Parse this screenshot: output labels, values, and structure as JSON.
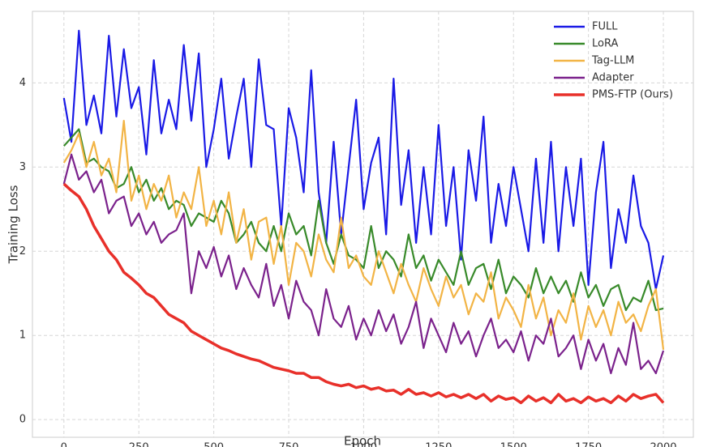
{
  "chart_data": {
    "type": "line",
    "x_label": "Epoch",
    "y_label": "Training Loss",
    "x": [
      0,
      25,
      50,
      75,
      100,
      125,
      150,
      175,
      200,
      225,
      250,
      275,
      300,
      325,
      350,
      375,
      400,
      425,
      450,
      475,
      500,
      525,
      550,
      575,
      600,
      625,
      650,
      675,
      700,
      725,
      750,
      775,
      800,
      825,
      850,
      875,
      900,
      925,
      950,
      975,
      1000,
      1025,
      1050,
      1075,
      1100,
      1125,
      1150,
      1175,
      1200,
      1225,
      1250,
      1275,
      1300,
      1325,
      1350,
      1375,
      1400,
      1425,
      1450,
      1475,
      1500,
      1525,
      1550,
      1575,
      1600,
      1625,
      1650,
      1675,
      1700,
      1725,
      1750,
      1775,
      1800,
      1825,
      1850,
      1875,
      1900,
      1925,
      1950,
      1975,
      2000
    ],
    "series": [
      {
        "name": "FULL",
        "color": "#1a1ae6",
        "values": [
          3.82,
          3.3,
          4.62,
          3.5,
          3.85,
          3.4,
          4.56,
          3.6,
          4.4,
          3.7,
          3.95,
          3.15,
          4.27,
          3.4,
          3.8,
          3.45,
          4.45,
          3.55,
          4.35,
          3.0,
          3.45,
          4.05,
          3.1,
          3.6,
          4.05,
          3.0,
          4.28,
          3.5,
          3.45,
          2.3,
          3.7,
          3.35,
          2.7,
          4.15,
          2.7,
          2.1,
          3.3,
          2.2,
          3.0,
          3.8,
          2.5,
          3.05,
          3.35,
          2.2,
          4.05,
          2.55,
          3.2,
          2.1,
          3.0,
          2.2,
          3.5,
          2.3,
          3.0,
          1.9,
          3.2,
          2.6,
          3.6,
          2.1,
          2.8,
          2.3,
          3.0,
          2.5,
          2.0,
          3.1,
          2.1,
          3.3,
          2.0,
          3.0,
          2.3,
          3.1,
          1.6,
          2.7,
          3.3,
          1.8,
          2.5,
          2.1,
          2.9,
          2.3,
          2.1,
          1.55,
          1.95
        ]
      },
      {
        "name": "LoRA",
        "color": "#388a2a",
        "values": [
          3.25,
          3.35,
          3.45,
          3.05,
          3.1,
          3.0,
          2.95,
          2.75,
          2.8,
          3.0,
          2.7,
          2.85,
          2.6,
          2.75,
          2.5,
          2.6,
          2.55,
          2.3,
          2.45,
          2.4,
          2.35,
          2.6,
          2.45,
          2.1,
          2.2,
          2.35,
          2.1,
          2.0,
          2.3,
          2.0,
          2.45,
          2.2,
          2.3,
          1.95,
          2.6,
          2.1,
          1.85,
          2.2,
          1.95,
          1.9,
          1.8,
          2.3,
          1.8,
          2.0,
          1.9,
          1.7,
          2.2,
          1.8,
          1.95,
          1.65,
          1.9,
          1.75,
          1.6,
          2.0,
          1.6,
          1.8,
          1.85,
          1.55,
          1.9,
          1.5,
          1.7,
          1.6,
          1.45,
          1.8,
          1.5,
          1.7,
          1.5,
          1.65,
          1.4,
          1.75,
          1.45,
          1.6,
          1.35,
          1.55,
          1.6,
          1.3,
          1.45,
          1.4,
          1.65,
          1.3,
          1.32
        ]
      },
      {
        "name": "Tag-LLM",
        "color": "#f2b445",
        "values": [
          3.05,
          3.2,
          3.4,
          3.0,
          3.3,
          2.9,
          3.1,
          2.7,
          3.55,
          2.6,
          2.9,
          2.5,
          2.8,
          2.6,
          2.9,
          2.4,
          2.7,
          2.5,
          3.0,
          2.3,
          2.6,
          2.2,
          2.7,
          2.1,
          2.5,
          1.9,
          2.35,
          2.4,
          1.85,
          2.3,
          1.6,
          2.1,
          2.0,
          1.7,
          2.2,
          1.9,
          1.75,
          2.4,
          1.8,
          1.95,
          1.7,
          1.6,
          2.0,
          1.75,
          1.5,
          1.85,
          1.6,
          1.4,
          1.8,
          1.55,
          1.35,
          1.7,
          1.45,
          1.6,
          1.25,
          1.5,
          1.4,
          1.75,
          1.2,
          1.45,
          1.3,
          1.1,
          1.6,
          1.2,
          1.45,
          1.0,
          1.3,
          1.15,
          1.5,
          0.95,
          1.35,
          1.1,
          1.3,
          1.0,
          1.4,
          1.15,
          1.25,
          1.05,
          1.35,
          1.55,
          0.83
        ]
      },
      {
        "name": "Adapter",
        "color": "#7b228c",
        "values": [
          2.8,
          3.15,
          2.85,
          2.95,
          2.7,
          2.85,
          2.45,
          2.6,
          2.65,
          2.3,
          2.45,
          2.2,
          2.35,
          2.1,
          2.2,
          2.25,
          2.45,
          1.5,
          2.0,
          1.8,
          2.05,
          1.7,
          1.95,
          1.55,
          1.8,
          1.6,
          1.45,
          1.85,
          1.35,
          1.6,
          1.2,
          1.65,
          1.4,
          1.3,
          1.0,
          1.55,
          1.2,
          1.1,
          1.35,
          0.95,
          1.2,
          1.0,
          1.3,
          1.05,
          1.25,
          0.9,
          1.1,
          1.4,
          0.85,
          1.2,
          1.0,
          0.8,
          1.15,
          0.9,
          1.05,
          0.75,
          1.0,
          1.2,
          0.85,
          0.95,
          0.8,
          1.05,
          0.7,
          1.0,
          0.9,
          1.2,
          0.75,
          0.85,
          1.0,
          0.6,
          0.95,
          0.7,
          0.9,
          0.55,
          0.85,
          0.65,
          1.15,
          0.6,
          0.7,
          0.55,
          0.82
        ]
      },
      {
        "name": "PMS-FTP (Ours)",
        "color": "#e8302a",
        "values": [
          2.8,
          2.72,
          2.65,
          2.5,
          2.3,
          2.15,
          2.0,
          1.9,
          1.75,
          1.68,
          1.6,
          1.5,
          1.45,
          1.35,
          1.25,
          1.2,
          1.15,
          1.05,
          1.0,
          0.95,
          0.9,
          0.85,
          0.82,
          0.78,
          0.75,
          0.72,
          0.7,
          0.66,
          0.62,
          0.6,
          0.58,
          0.55,
          0.55,
          0.5,
          0.5,
          0.45,
          0.42,
          0.4,
          0.42,
          0.38,
          0.4,
          0.36,
          0.38,
          0.34,
          0.35,
          0.3,
          0.36,
          0.3,
          0.32,
          0.28,
          0.32,
          0.27,
          0.3,
          0.26,
          0.3,
          0.25,
          0.3,
          0.22,
          0.28,
          0.24,
          0.26,
          0.2,
          0.28,
          0.22,
          0.26,
          0.2,
          0.3,
          0.22,
          0.25,
          0.2,
          0.27,
          0.22,
          0.25,
          0.2,
          0.28,
          0.22,
          0.3,
          0.25,
          0.28,
          0.3,
          0.2
        ]
      }
    ],
    "xlim": [
      -105,
      2100
    ],
    "ylim": [
      -0.21,
      4.85
    ],
    "xticks": [
      0,
      250,
      500,
      750,
      1000,
      1250,
      1500,
      1750,
      2000
    ],
    "yticks": [
      0,
      1,
      2,
      3,
      4
    ],
    "grid": true,
    "legend": "upper right"
  }
}
